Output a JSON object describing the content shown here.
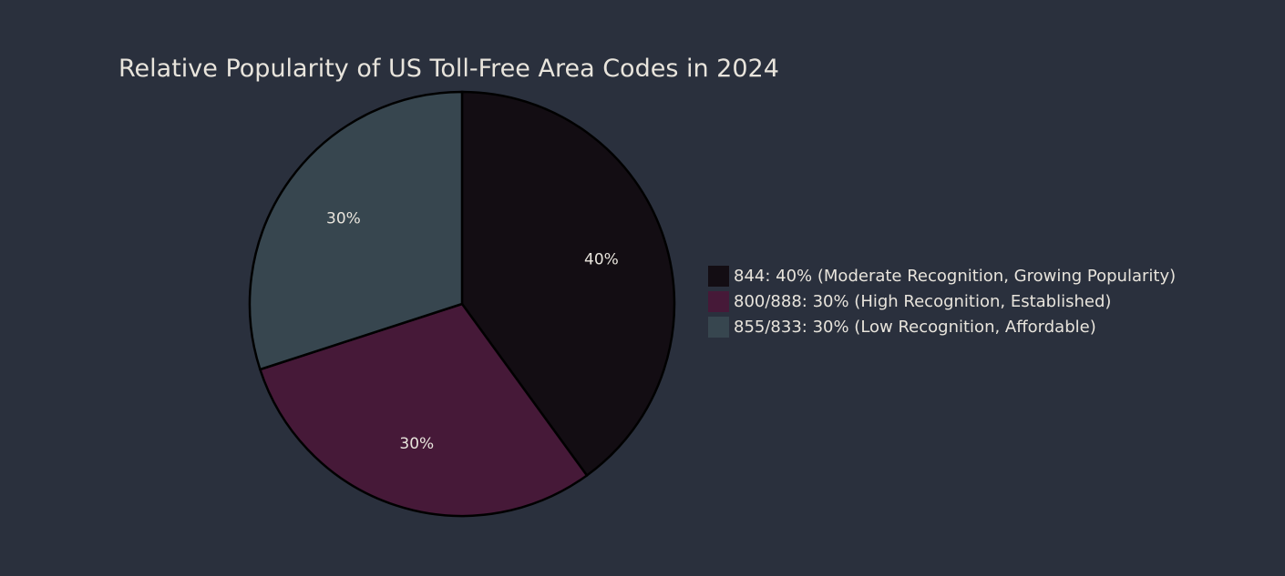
{
  "chart_data": {
    "type": "pie",
    "title": "Relative Popularity of US Toll-Free Area Codes in 2024",
    "legend_position": "right",
    "slices": [
      {
        "legend": "844: 40% (Moderate Recognition, Growing Popularity)",
        "label": "40%",
        "value": 40,
        "color": "#130d13"
      },
      {
        "legend": "800/888: 30% (High Recognition, Established)",
        "label": "30%",
        "value": 30,
        "color": "#461938"
      },
      {
        "legend": "855/833: 30% (Low Recognition, Affordable)",
        "label": "30%",
        "value": 30,
        "color": "#37464f"
      }
    ],
    "colors": {
      "background": "#2a303d",
      "outline": "#000000",
      "text": "#e8e4dc"
    }
  }
}
